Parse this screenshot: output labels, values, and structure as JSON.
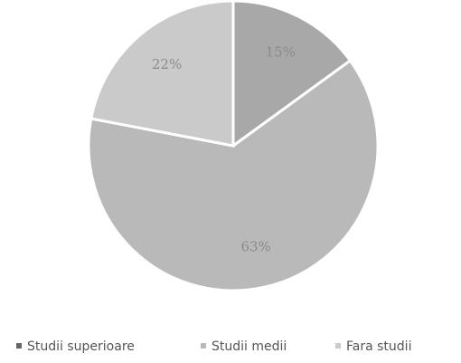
{
  "chart_data": {
    "type": "pie",
    "categories": [
      "Studii superioare",
      "Studii medii",
      "Fara studii"
    ],
    "values": [
      15,
      63,
      22
    ],
    "value_labels": [
      "15%",
      "63%",
      "22%"
    ],
    "colors": [
      "#a8a8a8",
      "#b9b9b9",
      "#cacaca"
    ],
    "legend": "bottom"
  }
}
